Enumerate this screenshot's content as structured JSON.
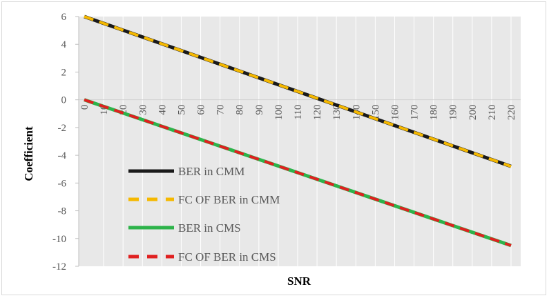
{
  "chart_data": {
    "type": "line",
    "title": "",
    "xlabel": "SNR",
    "ylabel": "Coefficient",
    "x": [
      0,
      10,
      20,
      30,
      40,
      50,
      60,
      70,
      80,
      90,
      100,
      110,
      120,
      130,
      140,
      150,
      160,
      170,
      180,
      190,
      200,
      210,
      220
    ],
    "xlim": [
      0,
      220
    ],
    "ylim": [
      -12,
      6
    ],
    "yticks": [
      6,
      4,
      2,
      0,
      -2,
      -4,
      -6,
      -8,
      -10,
      -12
    ],
    "xtick_labels": [
      "0",
      "10",
      "20",
      "30",
      "40",
      "50",
      "60",
      "70",
      "80",
      "90",
      "100",
      "110",
      "120",
      "130",
      "140",
      "150",
      "160",
      "170",
      "180",
      "190",
      "200",
      "210",
      "220"
    ],
    "ytick_labels": [
      "6",
      "4",
      "2",
      "0",
      "-2",
      "-4",
      "-6",
      "-8",
      "-10",
      "-12"
    ],
    "grid": "vertical",
    "legend_position": "bottom-left",
    "series": [
      {
        "name": "BER in CMM",
        "color": "#1a1a1a",
        "dash": "solid",
        "start": 6,
        "end": -4.8
      },
      {
        "name": "FC OF BER in CMM",
        "color": "#f5b800",
        "dash": "dashed",
        "start": 6,
        "end": -4.8
      },
      {
        "name": "BER in CMS",
        "color": "#2db34a",
        "dash": "solid",
        "start": 0,
        "end": -10.5
      },
      {
        "name": "FC OF BER in CMS",
        "color": "#e02020",
        "dash": "dashed",
        "start": 0,
        "end": -10.5
      }
    ]
  }
}
